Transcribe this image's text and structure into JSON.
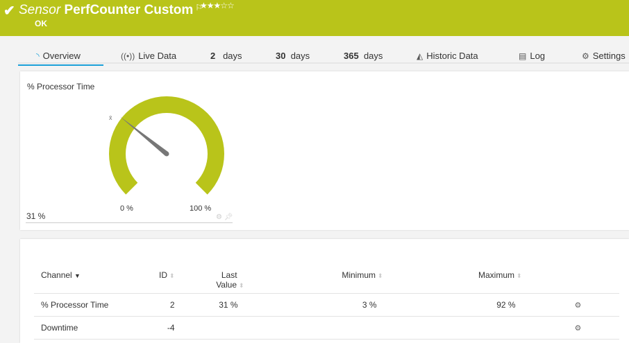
{
  "header": {
    "title_prefix": "Sensor",
    "title": "PerfCounter Custom",
    "flag_icon": "flag-icon",
    "stars": "★★★☆☆",
    "priority": 3,
    "status": "OK",
    "color": "#b9c41a"
  },
  "tabs": [
    {
      "label": "Overview",
      "icon": "gauge-icon",
      "active": true
    },
    {
      "label": "Live Data",
      "icon": "broadcast-icon"
    },
    {
      "num": "2",
      "label": "days"
    },
    {
      "num": "30",
      "label": "days"
    },
    {
      "num": "365",
      "label": "days"
    },
    {
      "label": "Historic Data",
      "icon": "area-chart-icon"
    },
    {
      "label": "Log",
      "icon": "log-icon"
    },
    {
      "label": "Settings",
      "icon": "gear-icon"
    }
  ],
  "gauge": {
    "title": "% Processor Time",
    "value_label": "31 %",
    "value": 31,
    "min_label": "0 %",
    "max_label": "100 %",
    "min": 0,
    "max": 100,
    "avg_marker": "x̄",
    "color": "#b9c41a"
  },
  "table": {
    "headers": {
      "channel": "Channel",
      "id": "ID",
      "last": "Last",
      "last2": "Value",
      "minimum": "Minimum",
      "maximum": "Maximum"
    },
    "rows": [
      {
        "channel": "% Processor Time",
        "id": "2",
        "last": "31 %",
        "minimum": "3 %",
        "maximum": "92 %"
      },
      {
        "channel": "Downtime",
        "id": "-4",
        "last": "",
        "minimum": "",
        "maximum": ""
      }
    ]
  }
}
